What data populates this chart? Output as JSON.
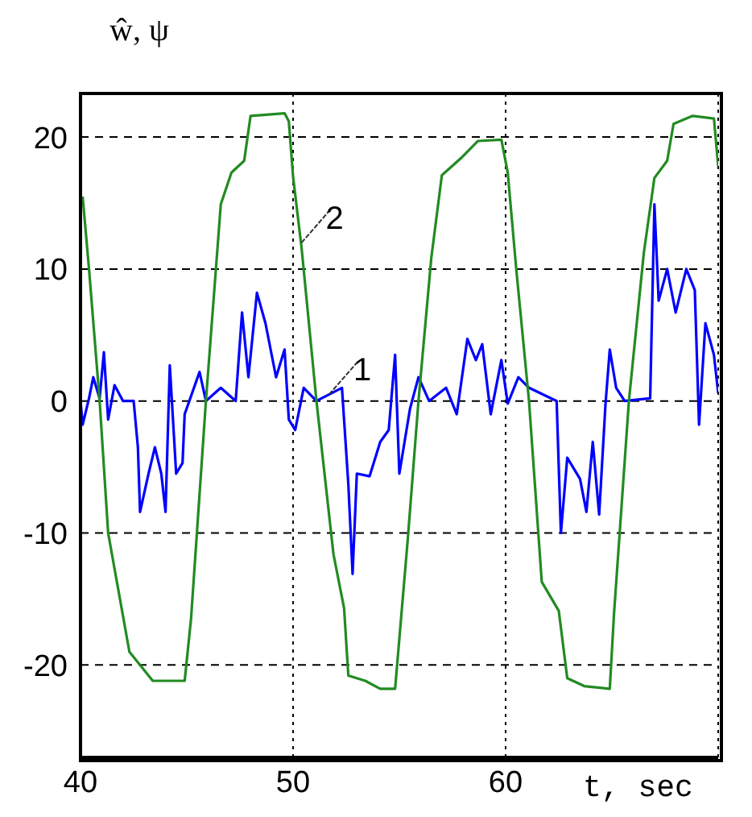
{
  "chart_data": {
    "type": "line",
    "xlabel": "t, sec",
    "ylabel": "ŵ, ψ",
    "xlim": [
      40,
      70
    ],
    "ylim": [
      -27,
      23.3
    ],
    "xticks": [
      40,
      50,
      60,
      {
        "value": 70,
        "label": null
      }
    ],
    "yticks": [
      -20,
      -10,
      0,
      10,
      20
    ],
    "grid": true,
    "marker": "none",
    "line_style": "solid",
    "series": [
      {
        "color": "#0000ff",
        "x": [
          40,
          40.1,
          40.4,
          40.6,
          40.9,
          41.1,
          41.3,
          41.6,
          42,
          42.5,
          42.7,
          42.8,
          43.2,
          43.5,
          43.8,
          44,
          44.2,
          44.5,
          44.8,
          44.9,
          45.6,
          45.9,
          46.6,
          47.3,
          47.6,
          47.9,
          48.3,
          48.7,
          49.2,
          49.6,
          49.8,
          50.1,
          50.5,
          51.1,
          52.3,
          52.6,
          52.8,
          53,
          53.6,
          54.1,
          54.5,
          54.8,
          55,
          55.5,
          55.9,
          56.4,
          57.2,
          57.7,
          58.2,
          58.6,
          58.9,
          59.3,
          59.8,
          60.1,
          60.6,
          61.1,
          62.4,
          62.6,
          62.9,
          63.5,
          63.8,
          64.1,
          64.4,
          64.7,
          64.9,
          65.2,
          65.6,
          66.8,
          67,
          67.2,
          67.6,
          68,
          68.5,
          68.9,
          69.1,
          69.4,
          69.8,
          70
        ],
        "values": [
          0,
          -1.8,
          0.2,
          1.8,
          0.2,
          3.7,
          -1.4,
          1.2,
          0,
          0,
          -3.5,
          -8.4,
          -5.5,
          -3.5,
          -5.5,
          -8.4,
          2.7,
          -5.5,
          -4.7,
          -1,
          2.2,
          0,
          1,
          0,
          6.7,
          1.8,
          8.2,
          5.9,
          1.8,
          3.9,
          -1.4,
          -2.2,
          1,
          0,
          1,
          -6.3,
          -13.1,
          -5.5,
          -5.7,
          -3.1,
          -2.2,
          3.5,
          -5.5,
          -0.6,
          1.8,
          0,
          1,
          -1,
          4.7,
          3.1,
          4.3,
          -1,
          3.1,
          -0.2,
          1.8,
          1,
          0,
          -10,
          -4.3,
          -5.9,
          -8.4,
          -3.1,
          -8.6,
          -0.2,
          3.9,
          1,
          0,
          0.2,
          14.9,
          7.6,
          10,
          6.7,
          10,
          8.4,
          -1.8,
          5.9,
          3.5,
          0.6
        ]
      },
      {
        "color": "#228b22",
        "x": [
          40.1,
          40.4,
          40.9,
          41.3,
          42.3,
          43.4,
          44.9,
          45.2,
          45.9,
          46.6,
          47.1,
          47.7,
          48,
          49.6,
          49.8,
          50,
          50.4,
          51.1,
          51.9,
          52.4,
          52.6,
          53.4,
          54.1,
          54.8,
          55.4,
          55.9,
          56.5,
          57,
          57.9,
          58.7,
          59.8,
          60.1,
          60.5,
          61.1,
          61.7,
          62.5,
          62.9,
          63.7,
          64.9,
          65.1,
          65.8,
          66.5,
          67,
          67.6,
          67.9,
          68.8,
          69.8,
          70
        ],
        "values": [
          15.5,
          10,
          0,
          -10,
          -19,
          -21.2,
          -21.2,
          -16.5,
          0,
          14.9,
          17.3,
          18.2,
          21.6,
          21.8,
          21.2,
          17,
          11.6,
          0,
          -11.6,
          -15.7,
          -20.8,
          -21.2,
          -21.8,
          -21.8,
          -10.4,
          0,
          10.8,
          17.1,
          18.4,
          19.7,
          19.8,
          17.3,
          10,
          0,
          -13.7,
          -15.9,
          -21,
          -21.6,
          -21.8,
          -16.1,
          0,
          11.2,
          16.9,
          18.2,
          21,
          21.6,
          21.4,
          17.8
        ]
      }
    ],
    "annotations": [
      {
        "text": "1",
        "x": 51.7,
        "y": 0.5
      },
      {
        "text": "2",
        "x": 50.4,
        "y": 12
      }
    ]
  }
}
